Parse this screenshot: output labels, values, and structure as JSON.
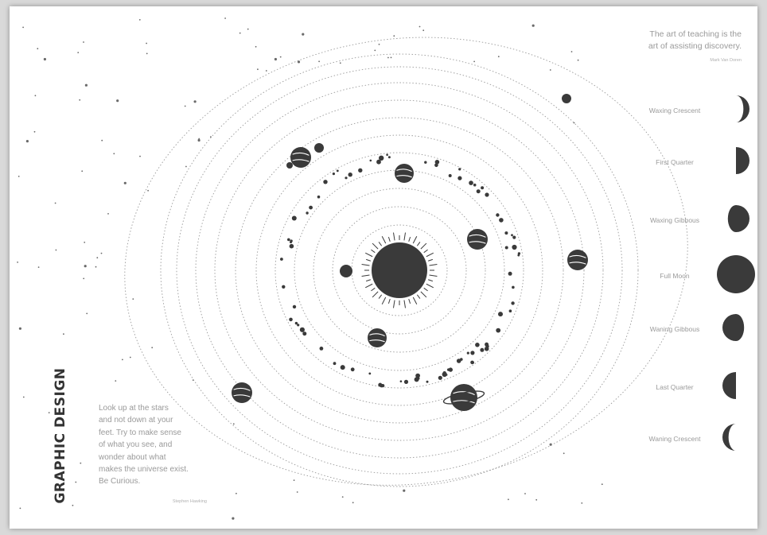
{
  "poster": {
    "vertical_title": "GRAPHIC DESIGN",
    "quote_top": {
      "lines": [
        "The art of teaching is the",
        "art of assisting discovery."
      ],
      "author": "Mark Van Doren"
    },
    "quote_bottom": {
      "lines": [
        "Look up at the stars",
        "and not down at your",
        "feet. Try to make sense",
        "of what you see, and",
        "wonder about what",
        "makes the universe exist.",
        "Be Curious."
      ],
      "author": "Stephen Hawking"
    },
    "moon_phases": [
      {
        "label": "Waxing Crescent",
        "icon": "waxing-crescent-moon"
      },
      {
        "label": "First Quarter",
        "icon": "first-quarter-moon"
      },
      {
        "label": "Waxing Gibbous",
        "icon": "waxing-gibbous-moon"
      },
      {
        "label": "Full Moon",
        "icon": "full-moon"
      },
      {
        "label": "Waning Gibbous",
        "icon": "waning-gibbous-moon"
      },
      {
        "label": "Last Quarter",
        "icon": "last-quarter-moon"
      },
      {
        "label": "Waning Crescent",
        "icon": "waning-crescent-moon"
      }
    ],
    "colors": {
      "ink": "#3a3a3a",
      "orbit": "#9a9a9a",
      "text": "#9a9a9a",
      "paper": "#ffffff"
    }
  }
}
